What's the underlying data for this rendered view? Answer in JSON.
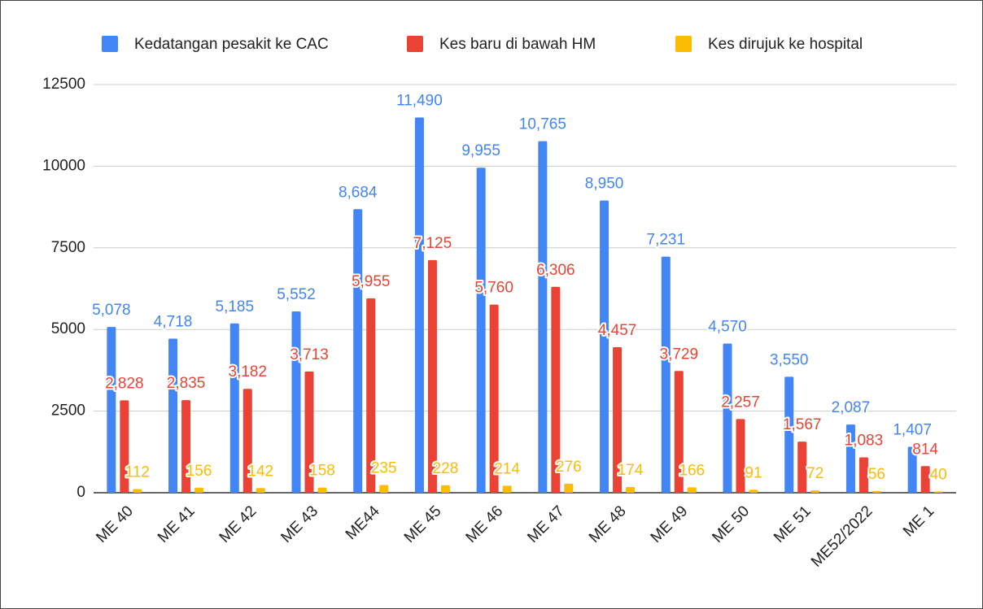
{
  "chart_data": {
    "type": "bar",
    "categories": [
      "ME 40",
      "ME 41",
      "ME 42",
      "ME 43",
      "ME44",
      "ME 45",
      "ME 46",
      "ME 47",
      "ME 48",
      "ME 49",
      "ME 50",
      "ME 51",
      "ME52/2022",
      "ME 1"
    ],
    "series": [
      {
        "name": "Kedatangan pesakit ke CAC",
        "color": "#4285f4",
        "values": [
          5078,
          4718,
          5185,
          5552,
          8684,
          11490,
          9955,
          10765,
          8950,
          7231,
          4570,
          3550,
          2087,
          1407
        ],
        "value_labels": [
          "5,078",
          "4,718",
          "5,185",
          "5,552",
          "8,684",
          "11,490",
          "9,955",
          "10,765",
          "8,950",
          "7,231",
          "4,570",
          "3,550",
          "2,087",
          "1,407"
        ]
      },
      {
        "name": "Kes baru di bawah HM",
        "color": "#ea4335",
        "values": [
          2828,
          2835,
          3182,
          3713,
          5955,
          7125,
          5760,
          6306,
          4457,
          3729,
          2257,
          1567,
          1083,
          814
        ],
        "value_labels": [
          "2,828",
          "2,835",
          "3,182",
          "3,713",
          "5,955",
          "7,125",
          "5,760",
          "6,306",
          "4,457",
          "3,729",
          "2,257",
          "1,567",
          "1,083",
          "814"
        ]
      },
      {
        "name": "Kes dirujuk ke hospital",
        "color": "#fbbc04",
        "values": [
          112,
          156,
          142,
          158,
          235,
          228,
          214,
          276,
          174,
          166,
          91,
          72,
          56,
          40
        ],
        "value_labels": [
          "112",
          "156",
          "142",
          "158",
          "235",
          "228",
          "214",
          "276",
          "174",
          "166",
          "91",
          "72",
          "56",
          "40"
        ]
      }
    ],
    "ylim": [
      0,
      12500
    ],
    "yticks": [
      0,
      2500,
      5000,
      7500,
      10000,
      12500
    ],
    "grid": true,
    "legend": "top"
  }
}
